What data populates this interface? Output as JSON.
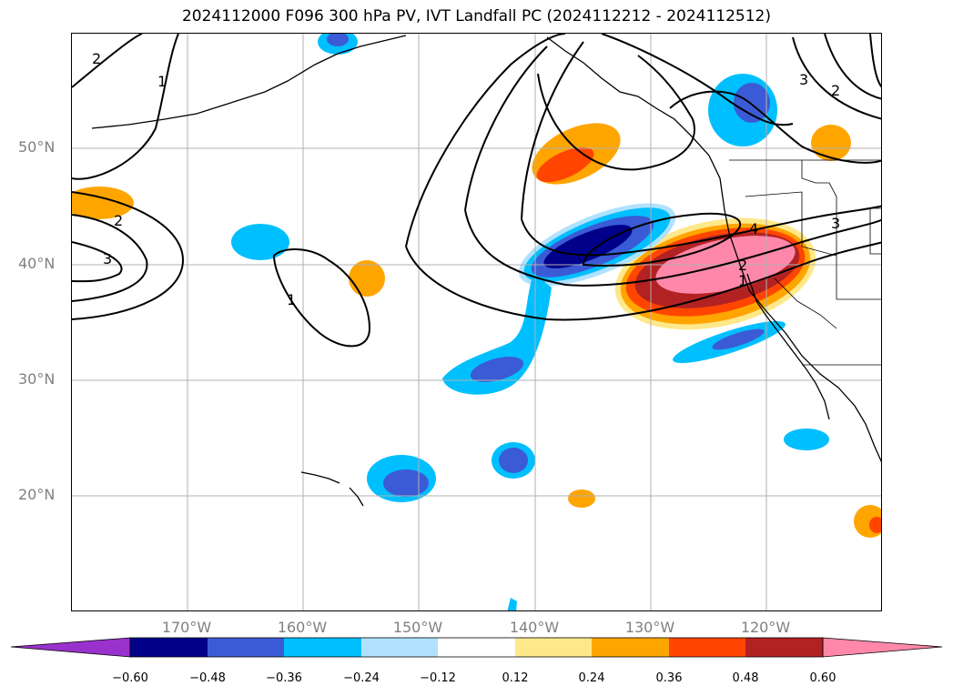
{
  "title": "2024112000 F096 300 hPa PV, IVT Landfall PC (2024112212 - 2024112512)",
  "lat_labels": [
    "50°N",
    "40°N",
    "30°N",
    "20°N"
  ],
  "lon_labels": [
    "170°W",
    "160°W",
    "150°W",
    "140°W",
    "130°W",
    "120°W"
  ],
  "contour_labels": [
    "1",
    "1",
    "1",
    "2",
    "2",
    "2",
    "2",
    "3",
    "3",
    "3",
    "4"
  ],
  "colorbar": {
    "ticks": [
      "−0.60",
      "−0.48",
      "−0.36",
      "−0.24",
      "−0.12",
      "0.12",
      "0.24",
      "0.36",
      "0.48",
      "0.60"
    ],
    "colors": [
      "#9932cc",
      "#00008b",
      "#3b5bd6",
      "#00bfff",
      "#b0e2ff",
      "#ffffff",
      "#ffe88a",
      "#ffa500",
      "#ff4500",
      "#b22222",
      "#ff88aa"
    ]
  }
}
